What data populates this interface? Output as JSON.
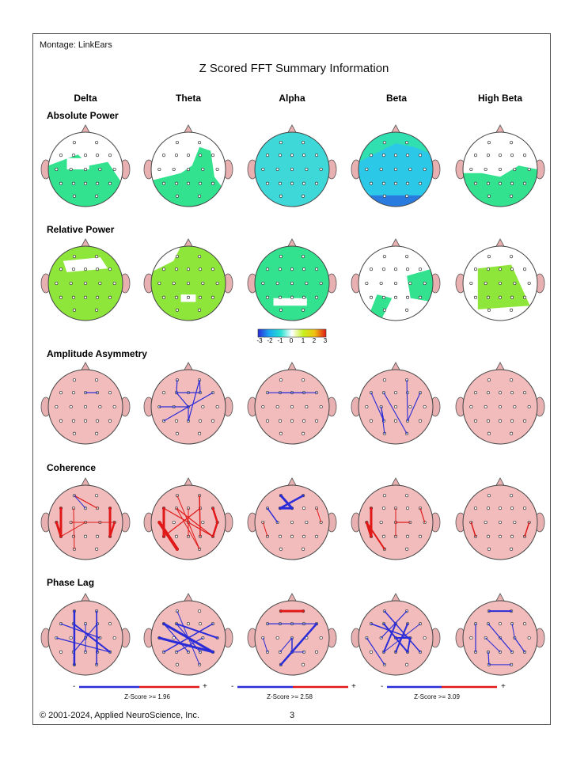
{
  "montage": "Montage:  LinkEars",
  "title": "Z Scored FFT Summary Information",
  "bands": [
    "Delta",
    "Theta",
    "Alpha",
    "Beta",
    "High Beta"
  ],
  "rows": [
    "Absolute Power",
    "Relative Power",
    "Amplitude Asymmetry",
    "Coherence",
    "Phase Lag"
  ],
  "colorbar": {
    "ticks": [
      "-3",
      "-2",
      "-1",
      "0",
      "1",
      "2",
      "3"
    ],
    "colors": [
      "#2a2cd8",
      "#1aa8f0",
      "#27e0d0",
      "#ffffff",
      "#c6f01e",
      "#f0c010",
      "#e01818"
    ]
  },
  "legends": [
    {
      "label": "Z-Score >= 1.96",
      "minus": "-",
      "plus": "+"
    },
    {
      "label": "Z-Score >= 2.58",
      "minus": "-",
      "plus": "+"
    },
    {
      "label": "Z-Score >= 3.09",
      "minus": "-",
      "plus": "+"
    }
  ],
  "colors": {
    "head_fill": "#f2bcbc",
    "positive": "#e01818",
    "negative": "#2a2cd8",
    "green": "#30e27a",
    "cyan": "#27d7c4",
    "lime": "#8fe63a"
  },
  "copyright": "© 2001-2024, Applied NeuroScience, Inc.",
  "page_number": "3"
}
